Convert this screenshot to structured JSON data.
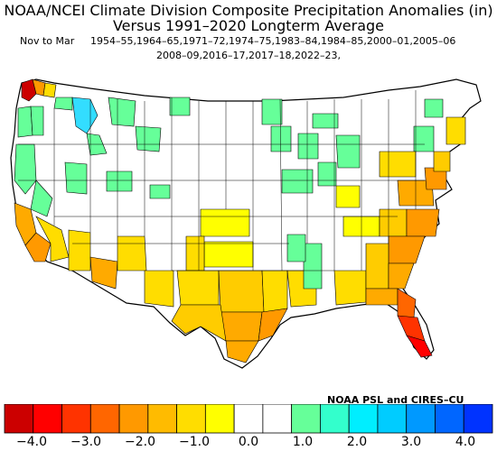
{
  "title_line1": "NOAA/NCEI Climate Division Composite Precipitation Anomalies (in)",
  "title_line2": "Versus 1991–2020 Longterm Average",
  "period_label": "Nov to Mar",
  "years_line1": "1954–55,1964–65,1971–72,1974–75,1983–84,1984–85,2000–01,2005–06",
  "years_line2": "2008–09,2016–17,2017–18,2022–23,",
  "credit": "NOAA PSL and CIRES–CU",
  "map": {
    "region": "Contiguous United States climate divisions",
    "regions_shaded": [
      {
        "name": "Florida peninsula",
        "color": "#ff3300"
      },
      {
        "name": "Southern Florida",
        "color": "#ff0000"
      },
      {
        "name": "Georgia / Carolinas coast",
        "color": "#ff9900"
      },
      {
        "name": "Mid-Atlantic",
        "color": "#ffaa00"
      },
      {
        "name": "Texas Gulf coast",
        "color": "#ff9900"
      },
      {
        "name": "Central Texas",
        "color": "#ffcc00"
      },
      {
        "name": "California coast",
        "color": "#ffaa00"
      },
      {
        "name": "Southwest desert",
        "color": "#ffdd00"
      },
      {
        "name": "Upper Midwest",
        "color": "#66ff99"
      },
      {
        "name": "Pacific Northwest interior",
        "color": "#33ddff"
      }
    ]
  },
  "colorbar": {
    "colors": [
      "#cc0000",
      "#ff0000",
      "#ff3300",
      "#ff6600",
      "#ff9900",
      "#ffbb00",
      "#ffdd00",
      "#ffff00",
      "#ffffff",
      "#ffffff",
      "#66ff99",
      "#33ffcc",
      "#00eeff",
      "#00ccff",
      "#0099ff",
      "#0066ff",
      "#0033ff"
    ],
    "tick_labels": [
      "−4.0",
      "−3.0",
      "−2.0",
      "−1.0",
      "0.0",
      "1.0",
      "2.0",
      "3.0",
      "4.0"
    ],
    "tick_values": [
      -4.0,
      -3.0,
      -2.0,
      -1.0,
      0.0,
      1.0,
      2.0,
      3.0,
      4.0
    ]
  }
}
